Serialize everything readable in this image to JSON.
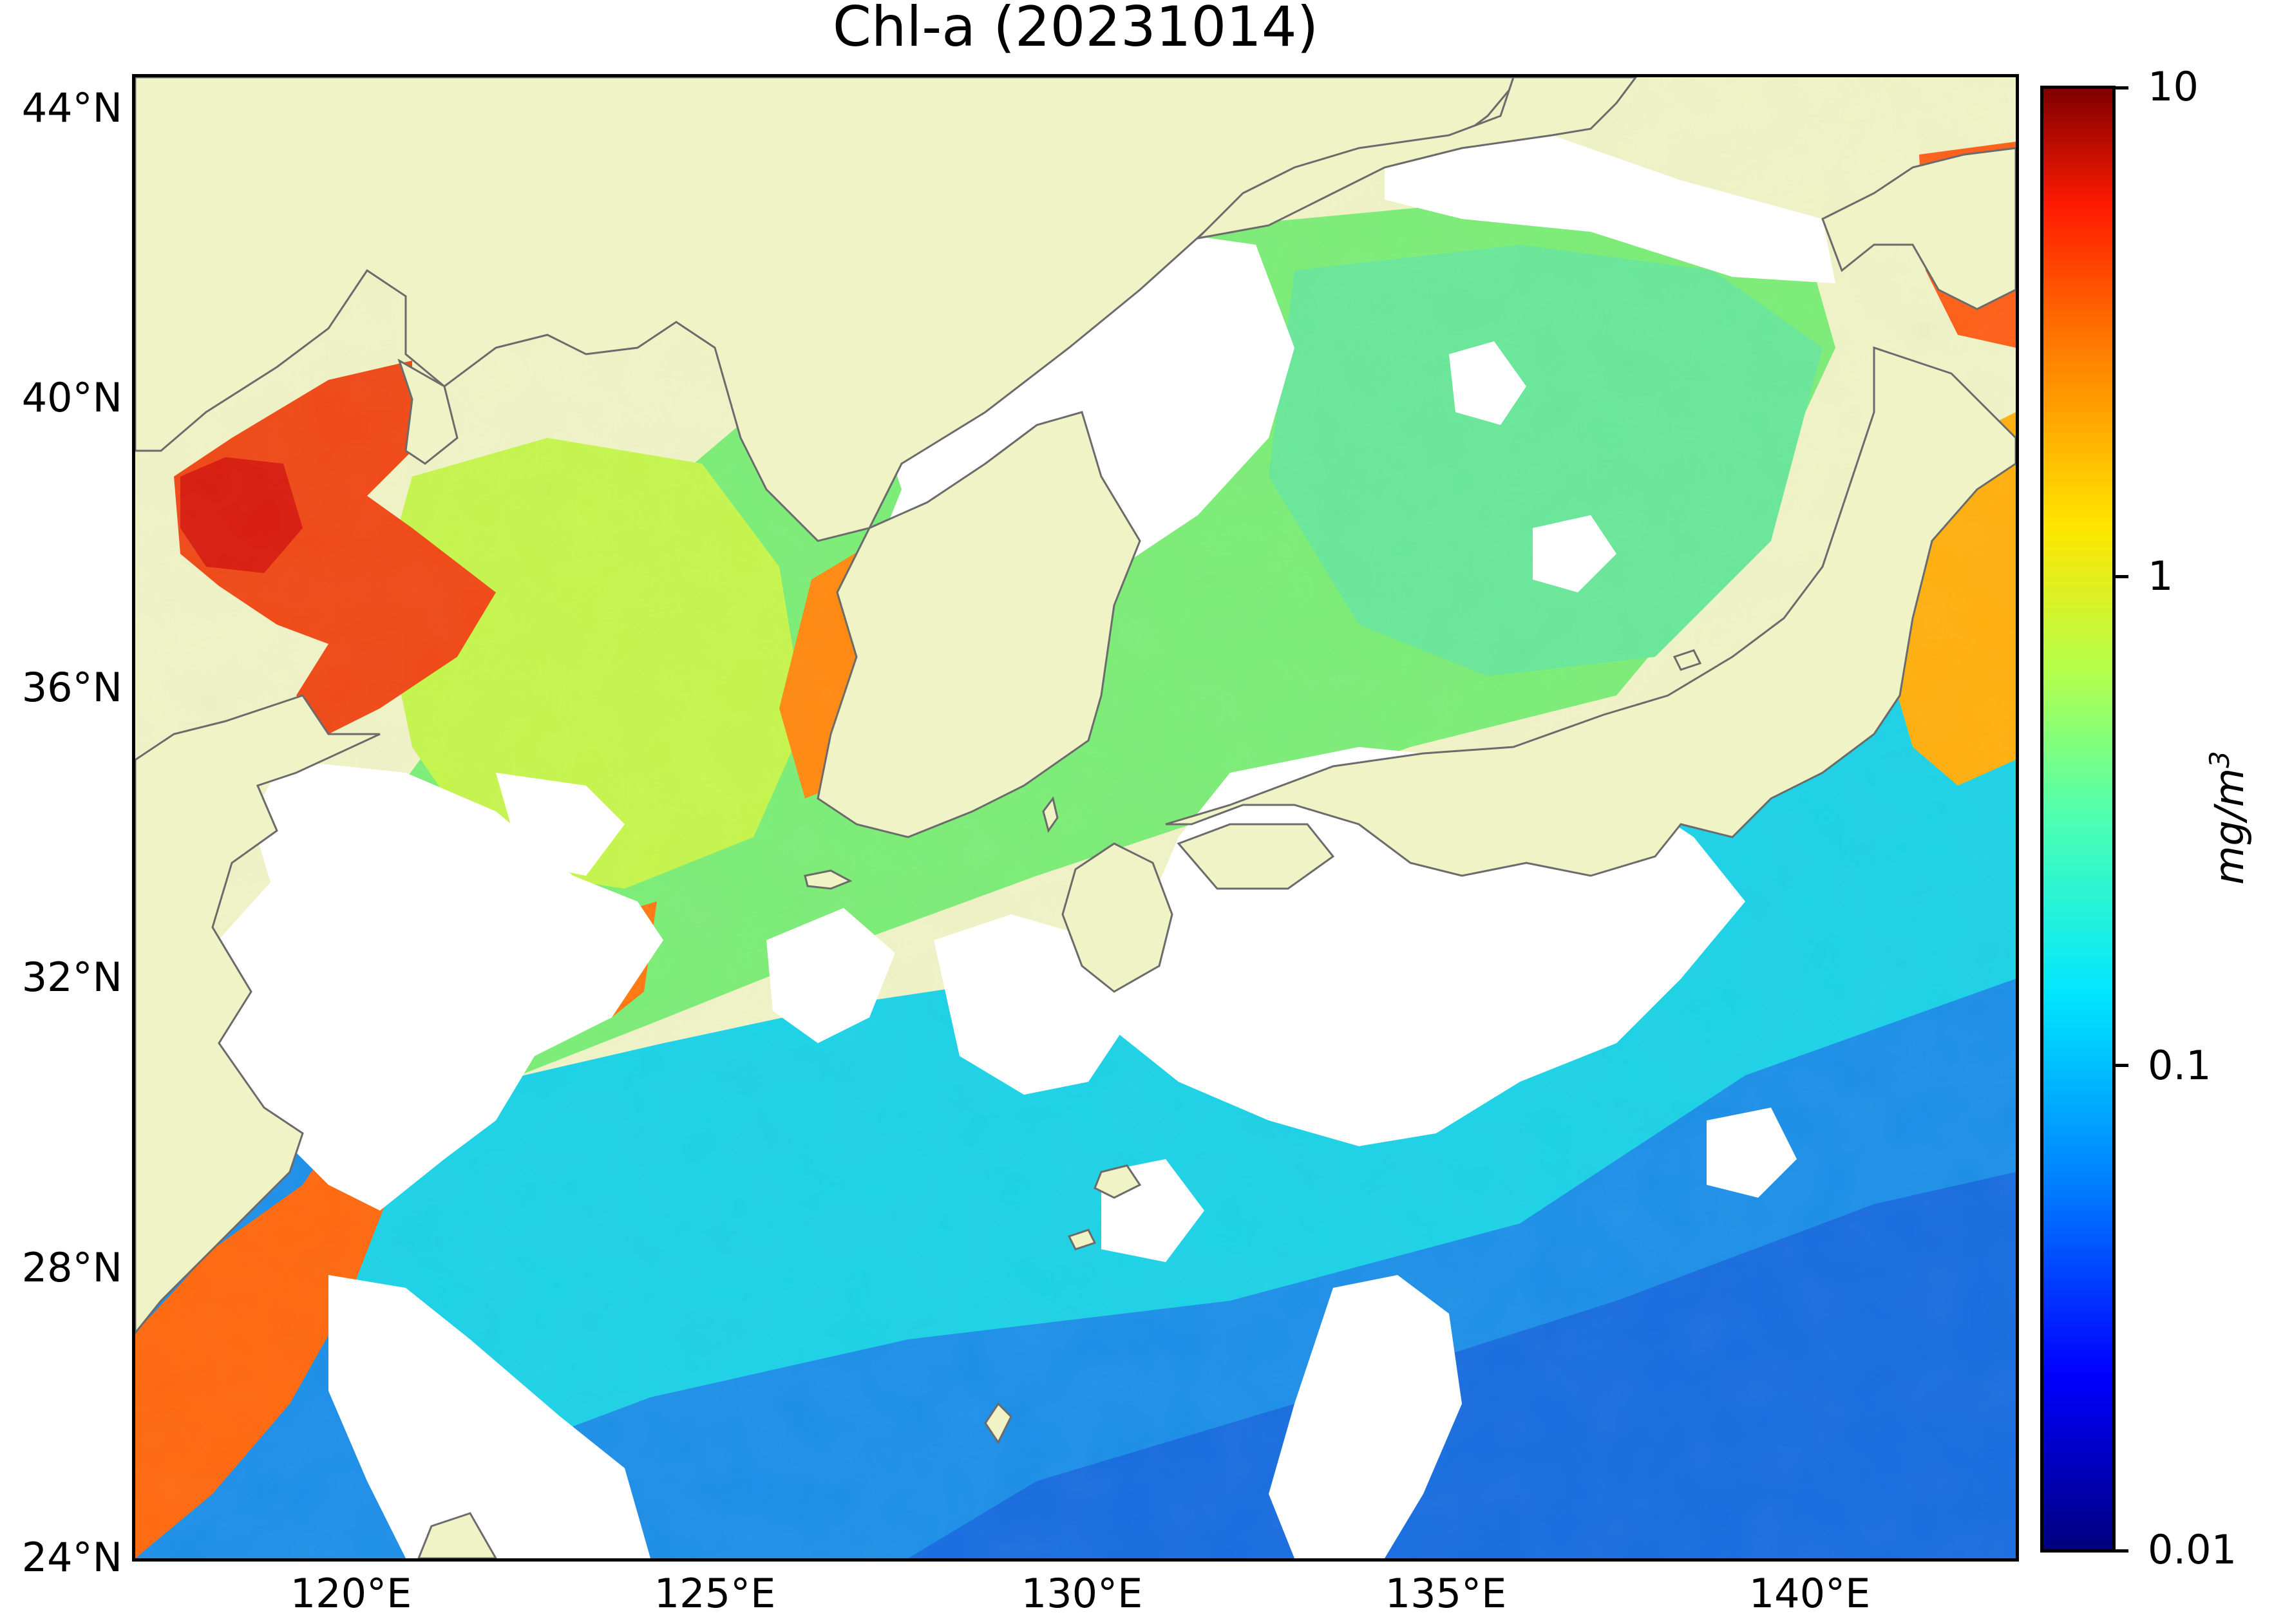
{
  "title": "Chl-a (20231014)",
  "lat_labels": [
    "44°N",
    "40°N",
    "36°N",
    "32°N",
    "28°N",
    "24°N"
  ],
  "lon_labels": [
    "120°E",
    "125°E",
    "130°E",
    "135°E",
    "140°E"
  ],
  "colorbar": {
    "ticks": [
      "10",
      "1",
      "0.1",
      "0.01"
    ],
    "unit": "mg/m",
    "unit_exponent": "3",
    "scale": "log",
    "range": [
      0.01,
      10
    ],
    "colormap": "jet"
  },
  "colors": {
    "land": "#f0f3c6",
    "cloud_mask": "#ffffff",
    "coastline": "#6b6b6b"
  },
  "map": {
    "extent_lon": [
      116.5,
      143.1
    ],
    "extent_lat": [
      23.9,
      44.5
    ]
  }
}
